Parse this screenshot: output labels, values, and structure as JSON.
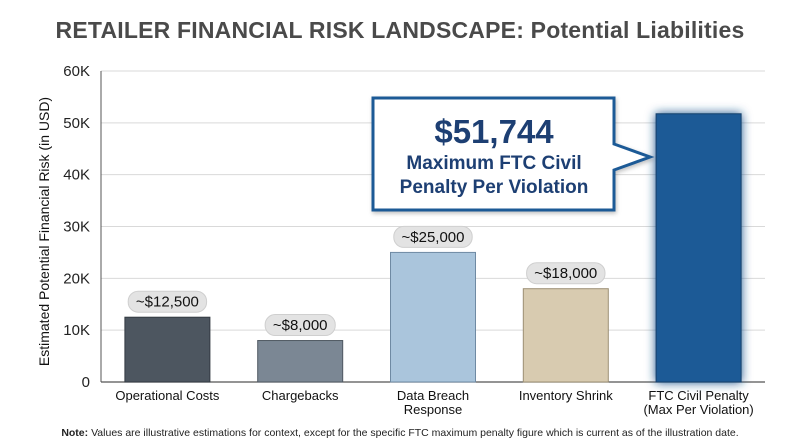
{
  "title_main": "RETAILER FINANCIAL RISK LANDSCAPE:",
  "title_sub": "Potential Liabilities",
  "note": {
    "label": "Note:",
    "text": "Values are illustrative estimations for context, except for the specific FTC maximum penalty figure which is current as of the illustration date."
  },
  "callout": {
    "amount": "$51,744",
    "line1": "Maximum FTC Civil",
    "line2": "Penalty Per Violation"
  },
  "colors": {
    "operational": "#4d5660",
    "chargebacks": "#7b8794",
    "breach": "#aac5dc",
    "shrink": "#d8cbb0",
    "ftc": "#1f5a96",
    "callout_border": "#1f5a96",
    "callout_text": "#1d3f73"
  },
  "chart_data": {
    "type": "bar",
    "categories": [
      [
        "Operational Costs"
      ],
      [
        "Chargebacks"
      ],
      [
        "Data Breach",
        "Response"
      ],
      [
        "Inventory Shrink"
      ],
      [
        "FTC Civil Penalty",
        "(Max Per Violation)"
      ]
    ],
    "values": [
      12500,
      8000,
      25000,
      18000,
      51744
    ],
    "data_labels": [
      "~$12,500",
      "~$8,000",
      "~$25,000",
      "~$18,000",
      ""
    ],
    "ylabel": "Estimated Potential Financial Risk (in USD)",
    "ylim": [
      0,
      60000
    ],
    "yticks": [
      0,
      10000,
      20000,
      30000,
      40000,
      50000,
      60000
    ],
    "ytick_labels": [
      "0",
      "10K",
      "20K",
      "30K",
      "40K",
      "50K",
      "60K"
    ],
    "grid": true
  }
}
